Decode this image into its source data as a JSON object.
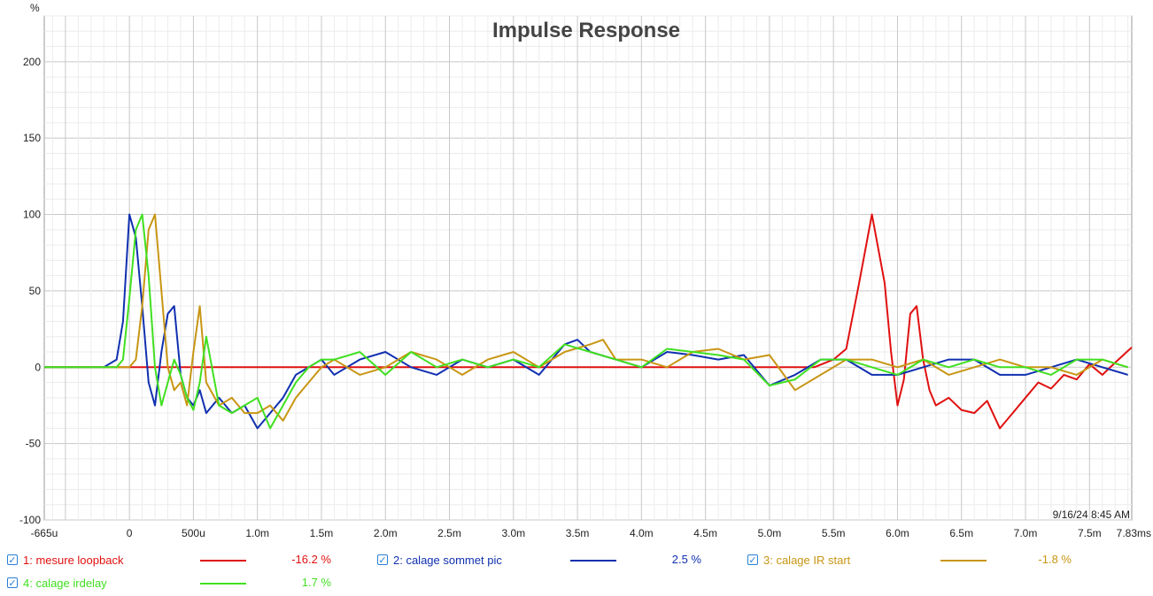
{
  "chart_data": {
    "type": "line",
    "title": "Impulse Response",
    "ylabel": "%",
    "xlabel": "",
    "x_unit": "s",
    "ylim": [
      -100,
      230
    ],
    "xlim": [
      -0.000665,
      0.00783
    ],
    "y_ticks": [
      200,
      150,
      100,
      50,
      0,
      -50,
      -100
    ],
    "x_ticks": [
      {
        "value": -0.000665,
        "label": "-665u"
      },
      {
        "value": 0,
        "label": "0"
      },
      {
        "value": 0.0005,
        "label": "500u"
      },
      {
        "value": 0.001,
        "label": "1.0m"
      },
      {
        "value": 0.0015,
        "label": "1.5m"
      },
      {
        "value": 0.002,
        "label": "2.0m"
      },
      {
        "value": 0.0025,
        "label": "2.5m"
      },
      {
        "value": 0.003,
        "label": "3.0m"
      },
      {
        "value": 0.0035,
        "label": "3.5m"
      },
      {
        "value": 0.004,
        "label": "4.0m"
      },
      {
        "value": 0.0045,
        "label": "4.5m"
      },
      {
        "value": 0.005,
        "label": "5.0m"
      },
      {
        "value": 0.0055,
        "label": "5.5m"
      },
      {
        "value": 0.006,
        "label": "6.0m"
      },
      {
        "value": 0.0065,
        "label": "6.5m"
      },
      {
        "value": 0.007,
        "label": "7.0m"
      },
      {
        "value": 0.0075,
        "label": "7.5m"
      },
      {
        "value": 0.00783,
        "label": "7.83ms"
      }
    ],
    "grid": true,
    "timestamp": "9/16/24 8:45 AM",
    "series": [
      {
        "name": "1: mesure loopback",
        "color": "#e01010",
        "legend_value": "-16.2 %",
        "x": [
          -0.000665,
          0.00535,
          0.0055,
          0.0056,
          0.0057,
          0.0058,
          0.0059,
          0.00595,
          0.006,
          0.00605,
          0.0061,
          0.00615,
          0.0062,
          0.00625,
          0.0063,
          0.0064,
          0.0065,
          0.0066,
          0.0067,
          0.0068,
          0.0069,
          0.007,
          0.0071,
          0.0072,
          0.0073,
          0.0074,
          0.0075,
          0.0076,
          0.0077,
          0.00783
        ],
        "y": [
          0,
          0,
          5,
          12,
          55,
          100,
          55,
          10,
          -25,
          -8,
          35,
          40,
          5,
          -15,
          -25,
          -20,
          -28,
          -30,
          -22,
          -40,
          -30,
          -20,
          -10,
          -14,
          -5,
          -8,
          2,
          -5,
          3,
          13
        ]
      },
      {
        "name": "2: calage sommet pic",
        "color": "#1030b0",
        "legend_value": "2.5 %",
        "x": [
          -0.000665,
          -0.0002,
          -0.0001,
          -5e-05,
          0,
          5e-05,
          0.0001,
          0.00015,
          0.0002,
          0.00025,
          0.0003,
          0.00035,
          0.0004,
          0.00045,
          0.0005,
          0.00055,
          0.0006,
          0.0007,
          0.0008,
          0.0009,
          0.001,
          0.0011,
          0.0012,
          0.0013,
          0.0014,
          0.0015,
          0.0016,
          0.0018,
          0.002,
          0.0022,
          0.0024,
          0.0026,
          0.0028,
          0.003,
          0.0032,
          0.0034,
          0.0035,
          0.0036,
          0.0038,
          0.004,
          0.0042,
          0.0044,
          0.0046,
          0.0048,
          0.005,
          0.0052,
          0.0054,
          0.0056,
          0.0058,
          0.006,
          0.0062,
          0.0064,
          0.0066,
          0.0068,
          0.007,
          0.0072,
          0.0074,
          0.0076,
          0.0078
        ],
        "y": [
          0,
          0,
          5,
          30,
          100,
          85,
          40,
          -10,
          -25,
          10,
          35,
          40,
          -5,
          -20,
          -25,
          -15,
          -30,
          -20,
          -30,
          -25,
          -40,
          -30,
          -20,
          -5,
          0,
          5,
          -5,
          5,
          10,
          0,
          -5,
          5,
          0,
          5,
          -5,
          15,
          18,
          10,
          5,
          0,
          10,
          8,
          5,
          8,
          -12,
          -5,
          5,
          5,
          -5,
          -5,
          0,
          5,
          5,
          -5,
          -5,
          0,
          5,
          0,
          -5
        ]
      },
      {
        "name": "3: calage IR start",
        "color": "#c89614",
        "legend_value": "-1.8 %",
        "x": [
          -0.000665,
          0,
          5e-05,
          0.0001,
          0.00015,
          0.0002,
          0.00025,
          0.0003,
          0.00035,
          0.0004,
          0.00045,
          0.0005,
          0.00055,
          0.0006,
          0.0007,
          0.0008,
          0.0009,
          0.001,
          0.0011,
          0.0012,
          0.0013,
          0.0014,
          0.0015,
          0.0016,
          0.0018,
          0.002,
          0.0022,
          0.0024,
          0.0026,
          0.0028,
          0.003,
          0.0032,
          0.0034,
          0.0036,
          0.0037,
          0.0038,
          0.004,
          0.0042,
          0.0044,
          0.0046,
          0.0048,
          0.005,
          0.0052,
          0.0054,
          0.0056,
          0.0058,
          0.006,
          0.0062,
          0.0064,
          0.0066,
          0.0068,
          0.007,
          0.0072,
          0.0074,
          0.0076,
          0.0078
        ],
        "y": [
          0,
          0,
          5,
          40,
          90,
          100,
          50,
          0,
          -15,
          -10,
          -25,
          10,
          40,
          -10,
          -25,
          -20,
          -30,
          -30,
          -25,
          -35,
          -20,
          -10,
          0,
          5,
          -5,
          0,
          10,
          5,
          -5,
          5,
          10,
          0,
          10,
          15,
          18,
          5,
          5,
          0,
          10,
          12,
          5,
          8,
          -15,
          -5,
          5,
          5,
          0,
          5,
          -5,
          0,
          5,
          0,
          0,
          -5,
          5,
          0
        ]
      },
      {
        "name": "4: calage irdelay",
        "color": "#40e020",
        "legend_value": "1.7 %",
        "x": [
          -0.000665,
          -0.0001,
          -5e-05,
          0,
          5e-05,
          0.0001,
          0.00015,
          0.0002,
          0.00025,
          0.0003,
          0.00035,
          0.0004,
          0.00045,
          0.0005,
          0.00055,
          0.0006,
          0.0007,
          0.0008,
          0.0009,
          0.001,
          0.0011,
          0.0012,
          0.0013,
          0.0014,
          0.0015,
          0.0016,
          0.0018,
          0.002,
          0.0022,
          0.0024,
          0.0026,
          0.0028,
          0.003,
          0.0032,
          0.0034,
          0.0036,
          0.0038,
          0.004,
          0.0042,
          0.0044,
          0.0046,
          0.0048,
          0.005,
          0.0052,
          0.0054,
          0.0056,
          0.0058,
          0.006,
          0.0062,
          0.0064,
          0.0066,
          0.0068,
          0.007,
          0.0072,
          0.0074,
          0.0076,
          0.0078
        ],
        "y": [
          0,
          0,
          5,
          45,
          90,
          100,
          60,
          0,
          -25,
          -10,
          5,
          -5,
          -20,
          -28,
          -10,
          20,
          -25,
          -30,
          -25,
          -20,
          -40,
          -25,
          -10,
          0,
          5,
          5,
          10,
          -5,
          10,
          0,
          5,
          0,
          5,
          0,
          15,
          10,
          5,
          0,
          12,
          10,
          8,
          5,
          -12,
          -8,
          5,
          5,
          0,
          -5,
          5,
          0,
          5,
          0,
          0,
          -5,
          5,
          5,
          0
        ]
      }
    ]
  },
  "legend": [
    {
      "label": "1: mesure loopback",
      "value": "-16.2 %",
      "color": "#e01010",
      "check": "✓"
    },
    {
      "label": "2: calage sommet pic",
      "value": "2.5 %",
      "color": "#1030b0",
      "check": "✓"
    },
    {
      "label": "3: calage IR start",
      "value": "-1.8 %",
      "color": "#c89614",
      "check": "✓"
    },
    {
      "label": "4: calage irdelay",
      "value": "1.7 %",
      "color": "#40e020",
      "check": "✓"
    }
  ]
}
